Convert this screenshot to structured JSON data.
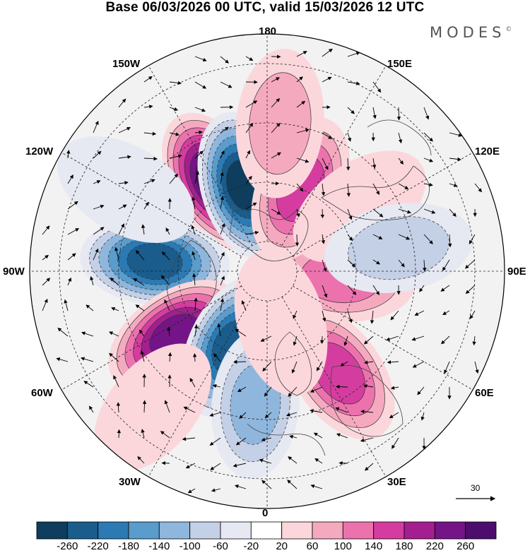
{
  "title": "Base 06/03/2026 00 UTC, valid 15/03/2026 12 UTC",
  "brand": "MODES",
  "brand_mark": "©",
  "longitude_labels": {
    "top": "180",
    "bottom": "0",
    "left": "90W",
    "right": "90E",
    "upper_left": "150W",
    "upper_right": "150E",
    "mid_upper_left": "120W",
    "mid_upper_right": "120E",
    "mid_lower_left": "60W",
    "mid_lower_right": "60E",
    "lower_left": "30W",
    "lower_right": "30E"
  },
  "reference_vector": {
    "label": "30",
    "icon": "arrow-right-icon"
  },
  "colorbar": {
    "tick_labels": [
      "-260",
      "-220",
      "-180",
      "-140",
      "-100",
      "-60",
      "-20",
      "20",
      "60",
      "100",
      "140",
      "180",
      "220",
      "260"
    ],
    "colors": [
      "#0e3d5e",
      "#1a5c8c",
      "#2b7ab3",
      "#5a9ccb",
      "#8fb6dc",
      "#c4d0e6",
      "#e6e8f2",
      "#ffffff",
      "#fbd7dc",
      "#f5a9bf",
      "#ec72ae",
      "#d43d9f",
      "#a31f8f",
      "#741487",
      "#4d0d6e"
    ]
  },
  "anomaly_field": {
    "centers": [
      {
        "lon": -150,
        "lat": 55,
        "value": 260
      },
      {
        "lon": -165,
        "lat": 60,
        "value": -260
      },
      {
        "lon": -95,
        "lat": 52,
        "value": -220
      },
      {
        "lon": -55,
        "lat": 52,
        "value": 230
      },
      {
        "lon": -25,
        "lat": 62,
        "value": -250
      },
      {
        "lon": -5,
        "lat": 45,
        "value": -130
      },
      {
        "lon": 35,
        "lat": 48,
        "value": 150
      },
      {
        "lon": 85,
        "lat": 65,
        "value": 130
      },
      {
        "lon": 158,
        "lat": 60,
        "value": 150
      },
      {
        "lon": 125,
        "lat": 52,
        "value": 45
      },
      {
        "lon": 175,
        "lat": 40,
        "value": 60
      },
      {
        "lon": 100,
        "lat": 45,
        "value": -60
      },
      {
        "lon": 15,
        "lat": 72,
        "value": 40
      },
      {
        "lon": -40,
        "lat": 30,
        "value": 40
      },
      {
        "lon": -120,
        "lat": 35,
        "value": -40
      }
    ]
  }
}
